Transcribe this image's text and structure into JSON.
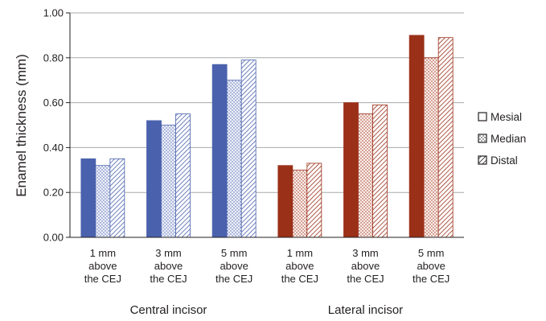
{
  "chart_data": {
    "type": "bar",
    "ylabel": "Enamel thickness (mm)",
    "ylim": [
      0,
      1.0
    ],
    "yticks": [
      "0.00",
      "0.20",
      "0.40",
      "0.60",
      "0.80",
      "1.00"
    ],
    "grid": true,
    "legend_position": "right",
    "categories": [
      [
        "1 mm",
        "above",
        "the CEJ"
      ],
      [
        "3 mm",
        "above",
        "the CEJ"
      ],
      [
        "5 mm",
        "above",
        "the CEJ"
      ],
      [
        "1 mm",
        "above",
        "the CEJ"
      ],
      [
        "3 mm",
        "above",
        "the CEJ"
      ],
      [
        "5 mm",
        "above",
        "the CEJ"
      ]
    ],
    "groups": [
      {
        "label": "Central incisor",
        "categories": [
          0,
          1,
          2
        ]
      },
      {
        "label": "Lateral incisor",
        "categories": [
          3,
          4,
          5
        ]
      }
    ],
    "series": [
      {
        "name": "Mesial",
        "pattern": "solid",
        "values": [
          0.35,
          0.52,
          0.77,
          0.32,
          0.6,
          0.9
        ]
      },
      {
        "name": "Median",
        "pattern": "dots",
        "values": [
          0.32,
          0.5,
          0.7,
          0.3,
          0.55,
          0.8
        ]
      },
      {
        "name": "Distal",
        "pattern": "hatch",
        "values": [
          0.35,
          0.55,
          0.79,
          0.33,
          0.59,
          0.89
        ]
      }
    ],
    "colors": {
      "central": "#4a62ad",
      "lateral": "#9b3019",
      "central_light": "#eef1fa",
      "lateral_light": "#fbeeea",
      "grid": "#a7a9ac",
      "axis": "#231f20"
    }
  }
}
